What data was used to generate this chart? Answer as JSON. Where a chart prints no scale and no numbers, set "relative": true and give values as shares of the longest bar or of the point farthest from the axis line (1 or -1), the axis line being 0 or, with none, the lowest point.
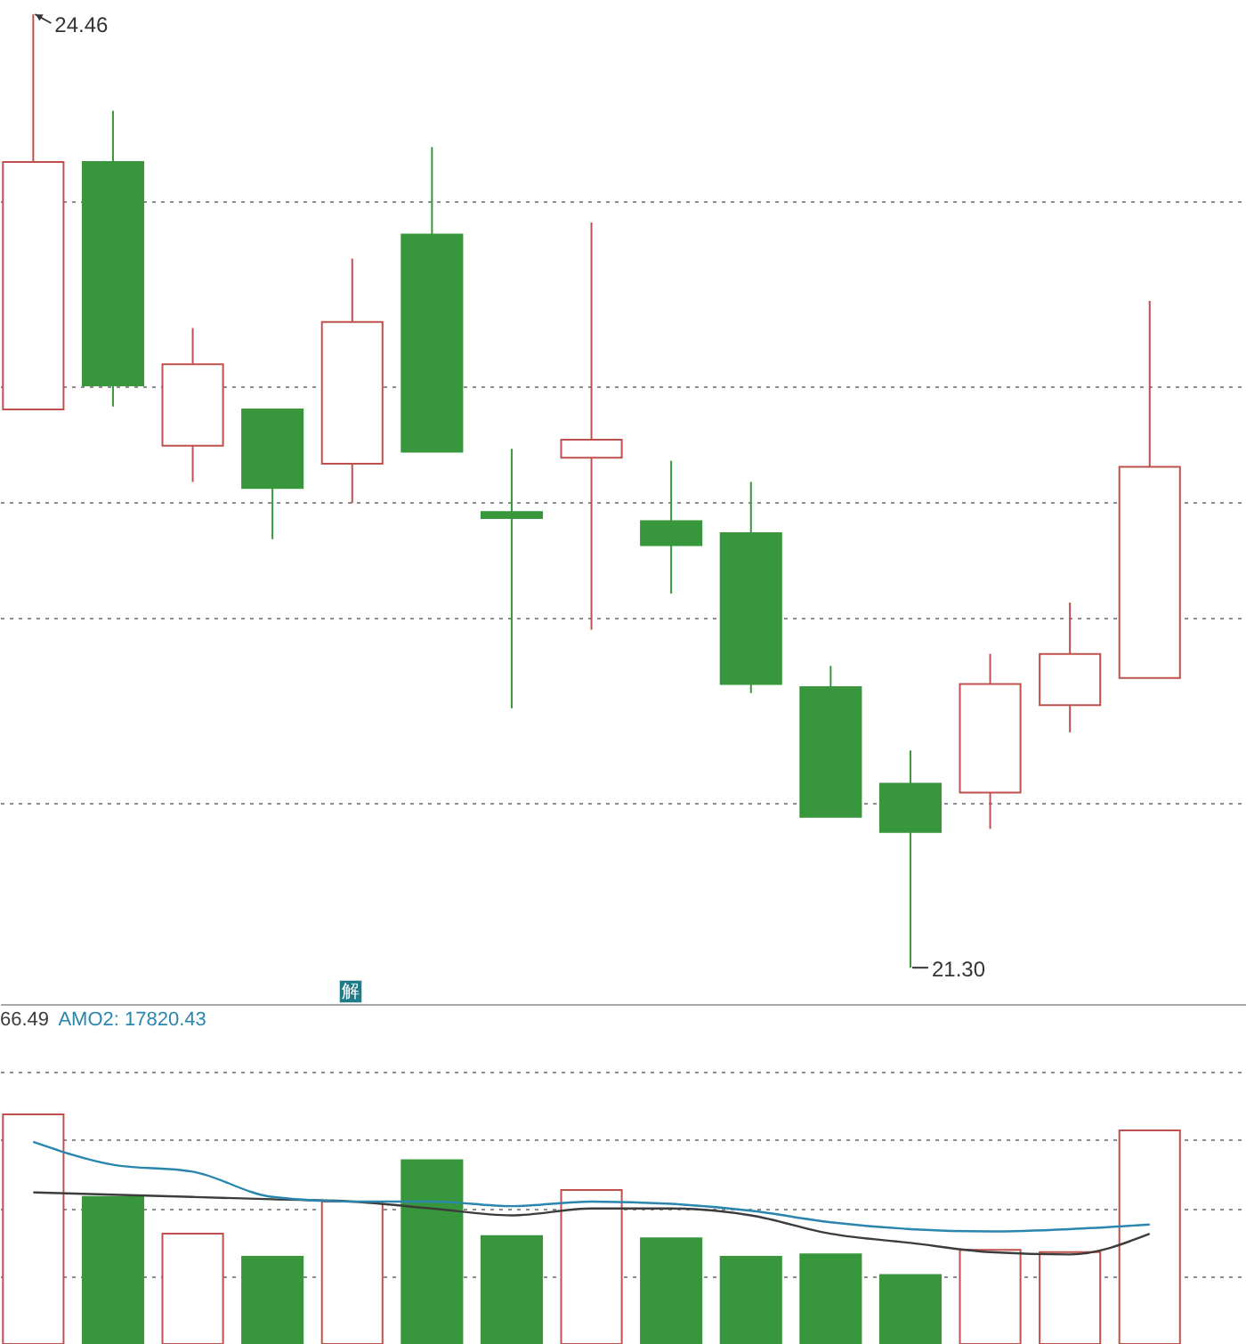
{
  "chart_data": [
    {
      "type": "candlestick",
      "categories": [
        null,
        null,
        null,
        null,
        null,
        null,
        null,
        null,
        null,
        null,
        null,
        null,
        null,
        null,
        null
      ],
      "ohlc": [
        [
          23.15,
          24.46,
          23.15,
          23.97
        ],
        [
          23.97,
          24.14,
          23.16,
          23.23
        ],
        [
          23.03,
          23.42,
          22.91,
          23.3
        ],
        [
          23.15,
          23.15,
          22.72,
          22.89
        ],
        [
          22.97,
          23.65,
          22.84,
          23.44
        ],
        [
          23.73,
          24.02,
          23.01,
          23.01
        ],
        [
          22.81,
          23.02,
          22.16,
          22.79
        ],
        [
          22.99,
          23.77,
          22.42,
          23.05
        ],
        [
          22.78,
          22.98,
          22.54,
          22.7
        ],
        [
          22.74,
          22.91,
          22.21,
          22.24
        ],
        [
          22.23,
          22.3,
          21.8,
          21.8
        ],
        [
          21.91,
          22.02,
          21.3,
          21.75
        ],
        [
          21.88,
          22.34,
          21.76,
          22.24
        ],
        [
          22.17,
          22.51,
          22.08,
          22.34
        ],
        [
          22.26,
          23.51,
          22.26,
          22.96
        ]
      ],
      "colors": [
        "#c0504d",
        "#38963c",
        "#c0504d",
        "#38963c",
        "#c0504d",
        "#38963c",
        "#38963c",
        "#c0504d",
        "#38963c",
        "#38963c",
        "#38963c",
        "#38963c",
        "#c0504d",
        "#c0504d",
        "#c0504d"
      ],
      "grid": "y",
      "tick_labels": false,
      "annotations": [
        "24.46",
        "21.30",
        "解"
      ]
    },
    {
      "type": "bar",
      "categories": [
        null,
        null,
        null,
        null,
        null,
        null,
        null,
        null,
        null,
        null,
        null,
        null,
        null,
        null,
        null
      ],
      "relative": true,
      "grid": "y",
      "series": [
        {
          "type": "bar",
          "colors": [
            "#c0504d",
            "#38963c",
            "#c0504d",
            "#38963c",
            "#c0504d",
            "#38963c",
            "#38963c",
            "#c0504d",
            "#38963c",
            "#38963c",
            "#38963c",
            "#38963c",
            "#c0504d",
            "#c0504d",
            "#c0504d"
          ],
          "values": [
            1,
            0.64,
            0.48,
            0.38,
            0.62,
            0.8,
            0.47,
            0.67,
            0.46,
            0.38,
            0.39,
            0.3,
            0.41,
            0.4,
            0.93
          ]
        },
        {
          "type": "line",
          "color": "#3c3c3c",
          "values": [
            0.66,
            0.65,
            0.64,
            0.63,
            0.62,
            0.59,
            0.56,
            0.59,
            0.59,
            0.56,
            0.48,
            0.44,
            0.4,
            0.39,
            0.48
          ]
        },
        {
          "type": "line",
          "color": "#2a86ad",
          "values": [
            0.88,
            0.78,
            0.75,
            0.64,
            0.62,
            0.62,
            0.6,
            0.62,
            0.61,
            0.58,
            0.53,
            0.5,
            0.49,
            0.5,
            0.52
          ]
        }
      ],
      "annotations": [
        "66.49",
        "AMO2: 17820.43"
      ]
    }
  ]
}
